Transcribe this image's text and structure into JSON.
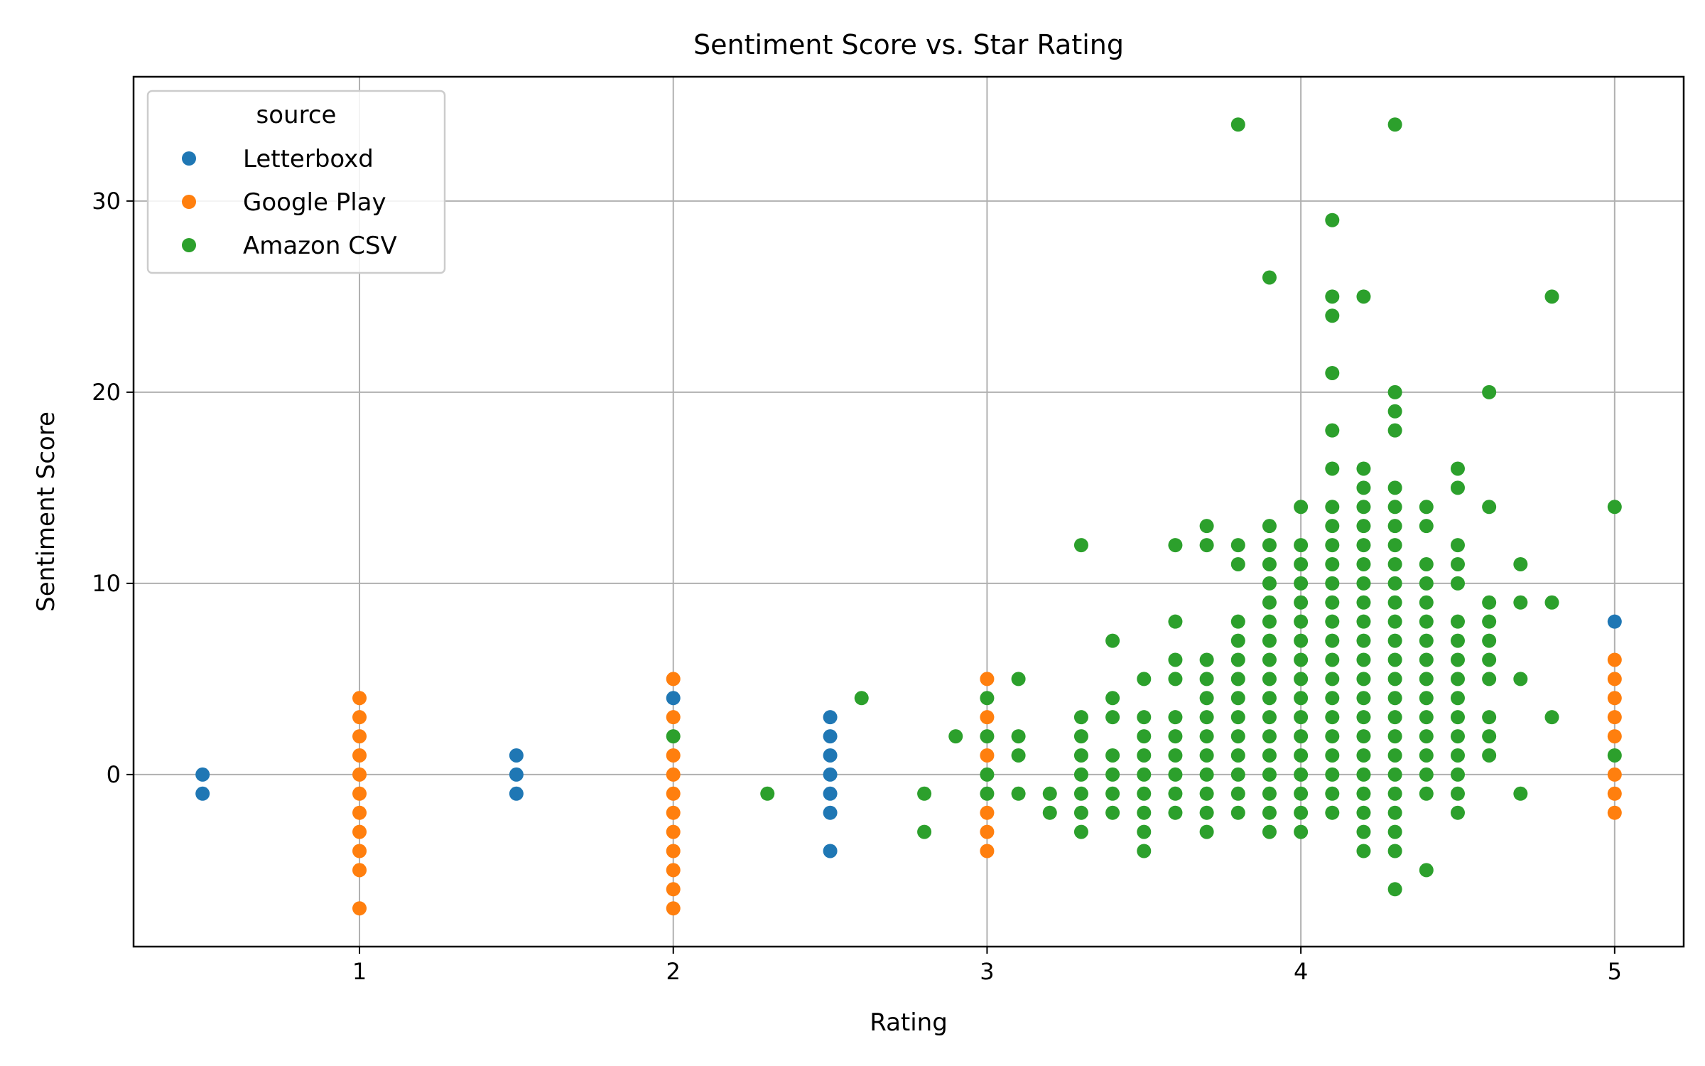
{
  "chart_data": {
    "type": "scatter",
    "title": "Sentiment Score vs. Star Rating",
    "xlabel": "Rating",
    "ylabel": "Sentiment Score",
    "xlim": [
      0.28,
      5.22
    ],
    "ylim": [
      -9,
      36.5
    ],
    "xticks": [
      1,
      2,
      3,
      4,
      5
    ],
    "yticks": [
      0,
      10,
      20,
      30
    ],
    "grid": true,
    "legend": {
      "title": "source",
      "placement": "top-left"
    },
    "series": [
      {
        "name": "Letterboxd",
        "color": "#1f77b4",
        "points": [
          [
            0.5,
            0
          ],
          [
            0.5,
            -1
          ],
          [
            1.5,
            1
          ],
          [
            1.5,
            0
          ],
          [
            1.5,
            -1
          ],
          [
            2,
            4
          ],
          [
            2.5,
            3
          ],
          [
            2.5,
            2
          ],
          [
            2.5,
            1
          ],
          [
            2.5,
            0
          ],
          [
            2.5,
            -1
          ],
          [
            2.5,
            -2
          ],
          [
            2.5,
            -4
          ],
          [
            5,
            8
          ]
        ]
      },
      {
        "name": "Google Play",
        "color": "#ff7f0e",
        "points": [
          [
            1,
            4
          ],
          [
            1,
            3
          ],
          [
            1,
            2
          ],
          [
            1,
            1
          ],
          [
            1,
            0
          ],
          [
            1,
            -1
          ],
          [
            1,
            -2
          ],
          [
            1,
            -3
          ],
          [
            1,
            -4
          ],
          [
            1,
            -5
          ],
          [
            1,
            -7
          ],
          [
            2,
            5
          ],
          [
            2,
            3
          ],
          [
            2,
            1
          ],
          [
            2,
            0
          ],
          [
            2,
            -1
          ],
          [
            2,
            -2
          ],
          [
            2,
            -3
          ],
          [
            2,
            -4
          ],
          [
            2,
            -5
          ],
          [
            2,
            -6
          ],
          [
            2,
            -7
          ],
          [
            3,
            5
          ],
          [
            3,
            3
          ],
          [
            3,
            1
          ],
          [
            3,
            -2
          ],
          [
            3,
            -3
          ],
          [
            3,
            -4
          ],
          [
            5,
            6
          ],
          [
            5,
            5
          ],
          [
            5,
            4
          ],
          [
            5,
            3
          ],
          [
            5,
            2
          ],
          [
            5,
            0
          ],
          [
            5,
            -1
          ],
          [
            5,
            -2
          ]
        ]
      },
      {
        "name": "Amazon CSV",
        "color": "#2ca02c",
        "points": [
          [
            2,
            2
          ],
          [
            2.3,
            -1
          ],
          [
            2.6,
            4
          ],
          [
            2.8,
            -1
          ],
          [
            2.8,
            -3
          ],
          [
            2.9,
            2
          ],
          [
            3,
            4
          ],
          [
            3,
            2
          ],
          [
            3,
            0
          ],
          [
            3,
            -1
          ],
          [
            3.1,
            5
          ],
          [
            3.1,
            2
          ],
          [
            3.1,
            1
          ],
          [
            3.1,
            -1
          ],
          [
            3.2,
            -1
          ],
          [
            3.2,
            -2
          ],
          [
            3.3,
            12
          ],
          [
            3.3,
            3
          ],
          [
            3.3,
            2
          ],
          [
            3.3,
            1
          ],
          [
            3.3,
            0
          ],
          [
            3.3,
            -1
          ],
          [
            3.3,
            -2
          ],
          [
            3.3,
            -3
          ],
          [
            3.4,
            7
          ],
          [
            3.4,
            4
          ],
          [
            3.4,
            3
          ],
          [
            3.4,
            1
          ],
          [
            3.4,
            0
          ],
          [
            3.4,
            -1
          ],
          [
            3.4,
            -2
          ],
          [
            3.5,
            5
          ],
          [
            3.5,
            3
          ],
          [
            3.5,
            2
          ],
          [
            3.5,
            1
          ],
          [
            3.5,
            0
          ],
          [
            3.5,
            -1
          ],
          [
            3.5,
            -2
          ],
          [
            3.5,
            -3
          ],
          [
            3.5,
            -4
          ],
          [
            3.6,
            12
          ],
          [
            3.6,
            8
          ],
          [
            3.6,
            6
          ],
          [
            3.6,
            5
          ],
          [
            3.6,
            3
          ],
          [
            3.6,
            2
          ],
          [
            3.6,
            1
          ],
          [
            3.6,
            0
          ],
          [
            3.6,
            -1
          ],
          [
            3.6,
            -2
          ],
          [
            3.7,
            13
          ],
          [
            3.7,
            12
          ],
          [
            3.7,
            6
          ],
          [
            3.7,
            5
          ],
          [
            3.7,
            4
          ],
          [
            3.7,
            3
          ],
          [
            3.7,
            2
          ],
          [
            3.7,
            1
          ],
          [
            3.7,
            0
          ],
          [
            3.7,
            -1
          ],
          [
            3.7,
            -2
          ],
          [
            3.7,
            -3
          ],
          [
            3.8,
            34
          ],
          [
            3.8,
            12
          ],
          [
            3.8,
            11
          ],
          [
            3.8,
            8
          ],
          [
            3.8,
            7
          ],
          [
            3.8,
            6
          ],
          [
            3.8,
            5
          ],
          [
            3.8,
            4
          ],
          [
            3.8,
            3
          ],
          [
            3.8,
            2
          ],
          [
            3.8,
            1
          ],
          [
            3.8,
            0
          ],
          [
            3.8,
            -1
          ],
          [
            3.8,
            -2
          ],
          [
            3.9,
            26
          ],
          [
            3.9,
            13
          ],
          [
            3.9,
            12
          ],
          [
            3.9,
            11
          ],
          [
            3.9,
            10
          ],
          [
            3.9,
            9
          ],
          [
            3.9,
            8
          ],
          [
            3.9,
            7
          ],
          [
            3.9,
            6
          ],
          [
            3.9,
            5
          ],
          [
            3.9,
            4
          ],
          [
            3.9,
            3
          ],
          [
            3.9,
            2
          ],
          [
            3.9,
            1
          ],
          [
            3.9,
            0
          ],
          [
            3.9,
            -1
          ],
          [
            3.9,
            -2
          ],
          [
            3.9,
            -3
          ],
          [
            4,
            14
          ],
          [
            4,
            12
          ],
          [
            4,
            11
          ],
          [
            4,
            10
          ],
          [
            4,
            9
          ],
          [
            4,
            8
          ],
          [
            4,
            7
          ],
          [
            4,
            6
          ],
          [
            4,
            5
          ],
          [
            4,
            4
          ],
          [
            4,
            3
          ],
          [
            4,
            2
          ],
          [
            4,
            1
          ],
          [
            4,
            0
          ],
          [
            4,
            -1
          ],
          [
            4,
            -2
          ],
          [
            4,
            -3
          ],
          [
            4.1,
            29
          ],
          [
            4.1,
            25
          ],
          [
            4.1,
            24
          ],
          [
            4.1,
            21
          ],
          [
            4.1,
            18
          ],
          [
            4.1,
            16
          ],
          [
            4.1,
            14
          ],
          [
            4.1,
            13
          ],
          [
            4.1,
            12
          ],
          [
            4.1,
            11
          ],
          [
            4.1,
            10
          ],
          [
            4.1,
            9
          ],
          [
            4.1,
            8
          ],
          [
            4.1,
            7
          ],
          [
            4.1,
            6
          ],
          [
            4.1,
            5
          ],
          [
            4.1,
            4
          ],
          [
            4.1,
            3
          ],
          [
            4.1,
            2
          ],
          [
            4.1,
            1
          ],
          [
            4.1,
            0
          ],
          [
            4.1,
            -1
          ],
          [
            4.1,
            -2
          ],
          [
            4.2,
            25
          ],
          [
            4.2,
            16
          ],
          [
            4.2,
            15
          ],
          [
            4.2,
            14
          ],
          [
            4.2,
            13
          ],
          [
            4.2,
            12
          ],
          [
            4.2,
            11
          ],
          [
            4.2,
            10
          ],
          [
            4.2,
            9
          ],
          [
            4.2,
            8
          ],
          [
            4.2,
            7
          ],
          [
            4.2,
            6
          ],
          [
            4.2,
            5
          ],
          [
            4.2,
            4
          ],
          [
            4.2,
            3
          ],
          [
            4.2,
            2
          ],
          [
            4.2,
            1
          ],
          [
            4.2,
            0
          ],
          [
            4.2,
            -1
          ],
          [
            4.2,
            -2
          ],
          [
            4.2,
            -3
          ],
          [
            4.2,
            -4
          ],
          [
            4.3,
            34
          ],
          [
            4.3,
            20
          ],
          [
            4.3,
            19
          ],
          [
            4.3,
            18
          ],
          [
            4.3,
            15
          ],
          [
            4.3,
            14
          ],
          [
            4.3,
            13
          ],
          [
            4.3,
            12
          ],
          [
            4.3,
            11
          ],
          [
            4.3,
            10
          ],
          [
            4.3,
            9
          ],
          [
            4.3,
            8
          ],
          [
            4.3,
            7
          ],
          [
            4.3,
            6
          ],
          [
            4.3,
            5
          ],
          [
            4.3,
            4
          ],
          [
            4.3,
            3
          ],
          [
            4.3,
            2
          ],
          [
            4.3,
            1
          ],
          [
            4.3,
            0
          ],
          [
            4.3,
            -1
          ],
          [
            4.3,
            -2
          ],
          [
            4.3,
            -3
          ],
          [
            4.3,
            -4
          ],
          [
            4.3,
            -6
          ],
          [
            4.4,
            14
          ],
          [
            4.4,
            13
          ],
          [
            4.4,
            11
          ],
          [
            4.4,
            10
          ],
          [
            4.4,
            9
          ],
          [
            4.4,
            8
          ],
          [
            4.4,
            7
          ],
          [
            4.4,
            6
          ],
          [
            4.4,
            5
          ],
          [
            4.4,
            4
          ],
          [
            4.4,
            3
          ],
          [
            4.4,
            2
          ],
          [
            4.4,
            1
          ],
          [
            4.4,
            0
          ],
          [
            4.4,
            -1
          ],
          [
            4.4,
            -5
          ],
          [
            4.5,
            16
          ],
          [
            4.5,
            15
          ],
          [
            4.5,
            12
          ],
          [
            4.5,
            11
          ],
          [
            4.5,
            10
          ],
          [
            4.5,
            8
          ],
          [
            4.5,
            7
          ],
          [
            4.5,
            6
          ],
          [
            4.5,
            5
          ],
          [
            4.5,
            4
          ],
          [
            4.5,
            3
          ],
          [
            4.5,
            2
          ],
          [
            4.5,
            1
          ],
          [
            4.5,
            0
          ],
          [
            4.5,
            -1
          ],
          [
            4.5,
            -2
          ],
          [
            4.6,
            20
          ],
          [
            4.6,
            14
          ],
          [
            4.6,
            9
          ],
          [
            4.6,
            8
          ],
          [
            4.6,
            7
          ],
          [
            4.6,
            6
          ],
          [
            4.6,
            5
          ],
          [
            4.6,
            3
          ],
          [
            4.6,
            2
          ],
          [
            4.6,
            1
          ],
          [
            4.7,
            11
          ],
          [
            4.7,
            9
          ],
          [
            4.7,
            5
          ],
          [
            4.7,
            -1
          ],
          [
            4.8,
            25
          ],
          [
            4.8,
            9
          ],
          [
            4.8,
            3
          ],
          [
            5,
            14
          ],
          [
            5,
            1
          ]
        ]
      }
    ]
  }
}
